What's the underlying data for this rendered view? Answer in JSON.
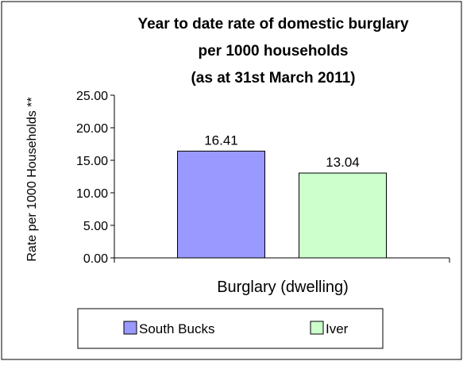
{
  "chart_data": {
    "type": "bar",
    "title_lines": [
      "Year to date rate of domestic burglary",
      "per 1000 households",
      "(as at 31st March 2011)"
    ],
    "xlabel": "Burglary (dwelling)",
    "ylabel": "Rate per 1000 Households **",
    "ylim": [
      0,
      25
    ],
    "yticks": [
      "0.00",
      "5.00",
      "10.00",
      "15.00",
      "20.00",
      "25.00"
    ],
    "categories": [
      "Burglary (dwelling)"
    ],
    "series": [
      {
        "name": "South Bucks",
        "values": [
          16.41
        ],
        "label": "16.41",
        "color": "#9999ff"
      },
      {
        "name": "Iver",
        "values": [
          13.04
        ],
        "label": "13.04",
        "color": "#ccffcc"
      }
    ],
    "grid": false,
    "legend": "bottom"
  }
}
